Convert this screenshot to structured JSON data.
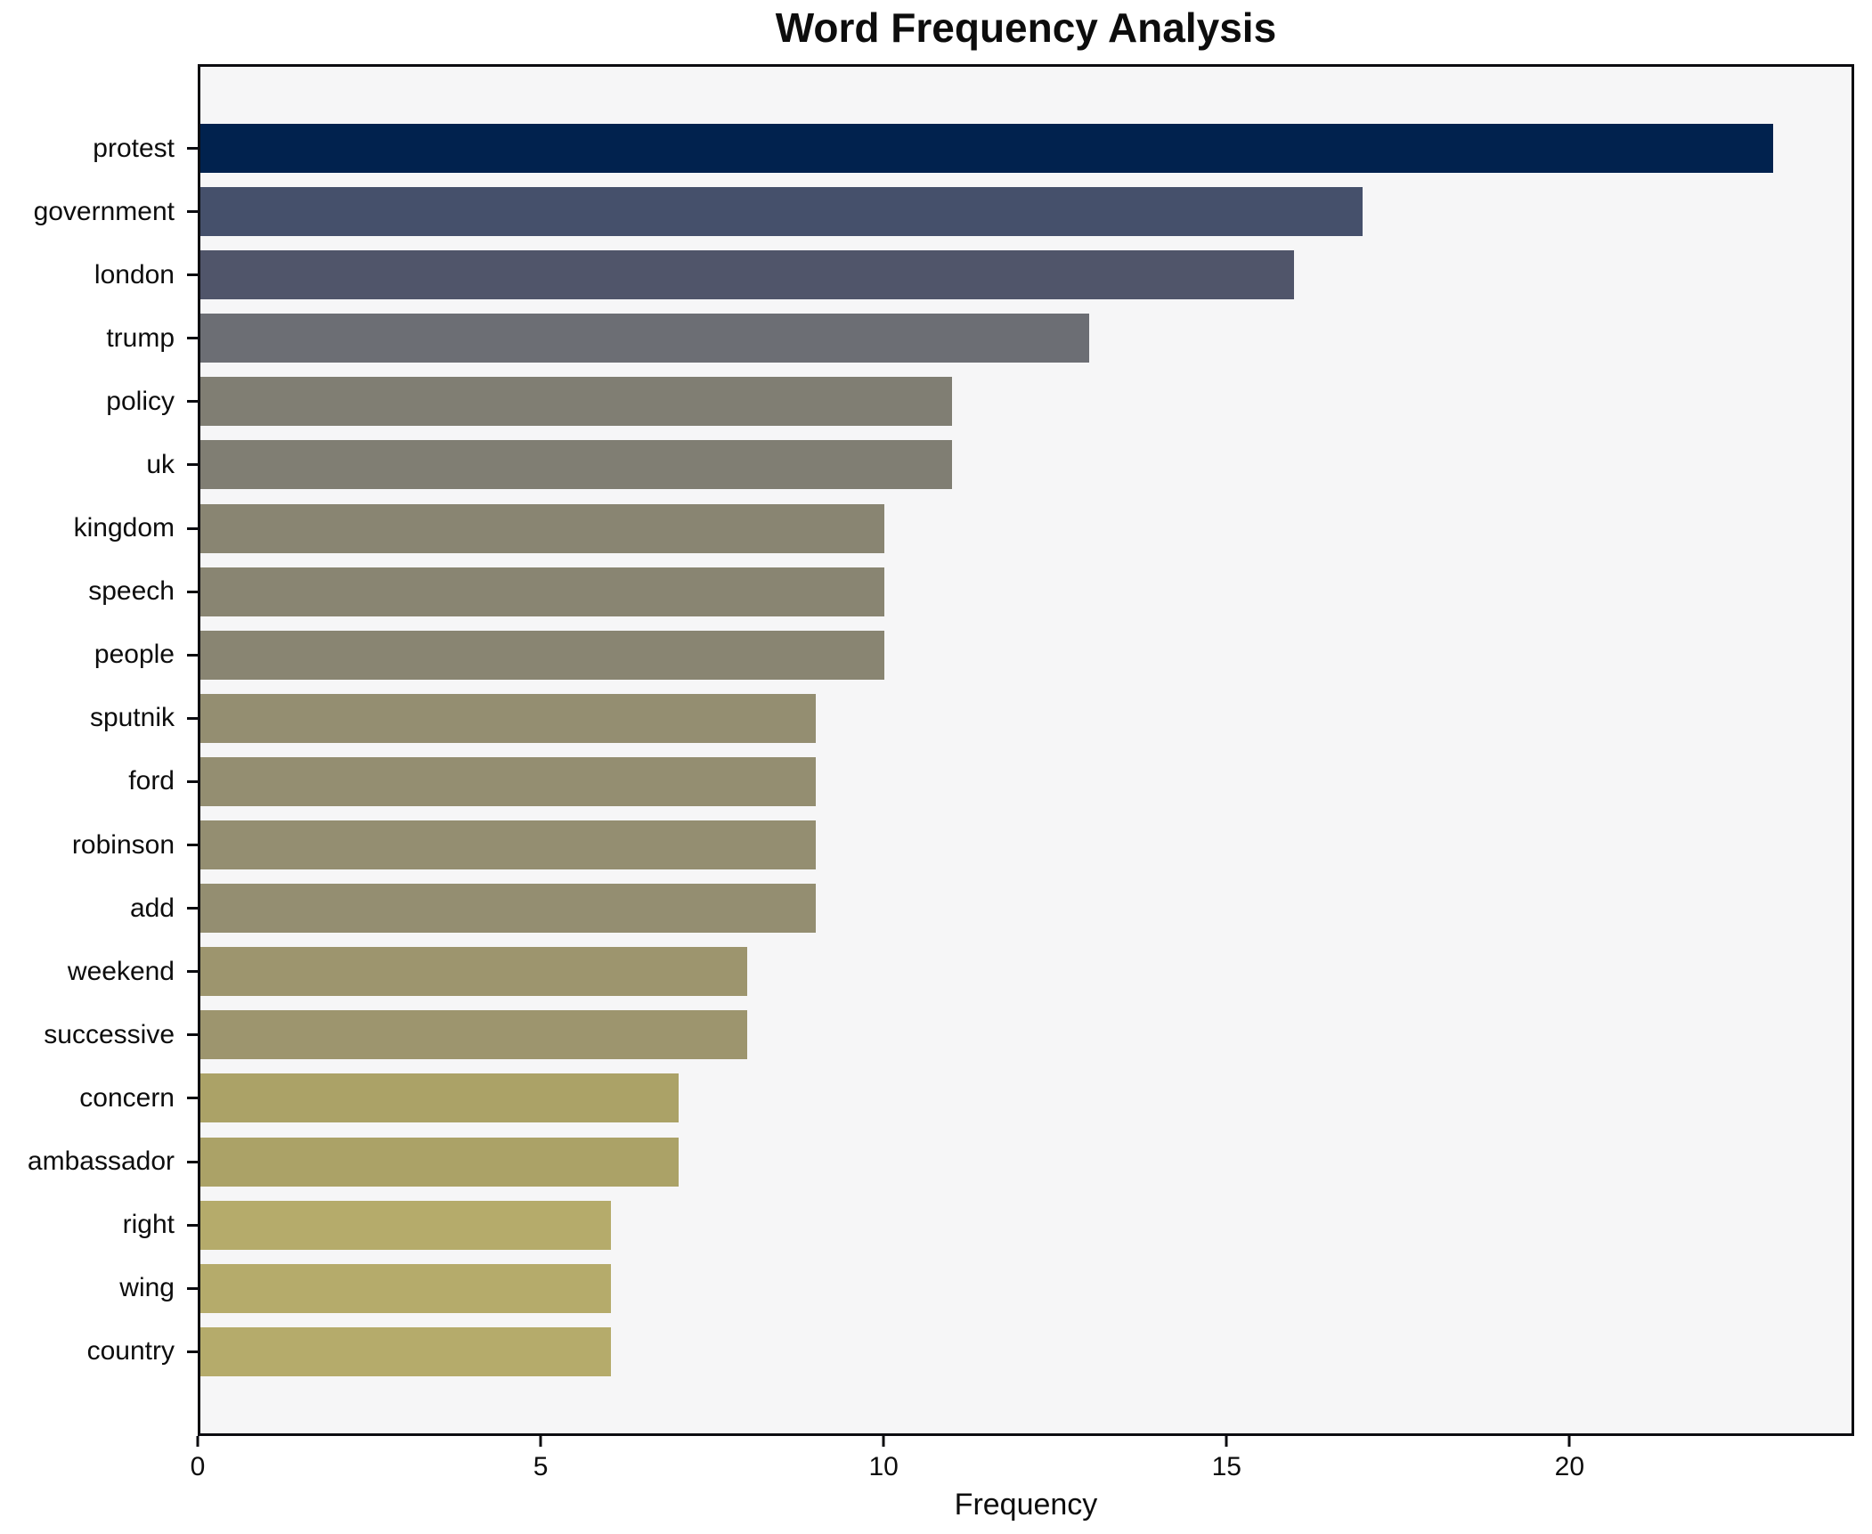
{
  "title": "Word Frequency Analysis",
  "xlabel": "Frequency",
  "colors": {
    "figure_background": "#ffffff",
    "plot_background": "#f6f6f7",
    "spine": "#0c0c10",
    "text": "#0d0d0d"
  },
  "chart_data": {
    "type": "bar",
    "orientation": "horizontal",
    "title": "Word Frequency Analysis",
    "xlabel": "Frequency",
    "ylabel": "",
    "grid": false,
    "legend": false,
    "xlim": [
      0,
      24.15
    ],
    "x_ticks": [
      0,
      5,
      10,
      15,
      20
    ],
    "categories": [
      "protest",
      "government",
      "london",
      "trump",
      "policy",
      "uk",
      "kingdom",
      "speech",
      "people",
      "sputnik",
      "ford",
      "robinson",
      "add",
      "weekend",
      "successive",
      "concern",
      "ambassador",
      "right",
      "wing",
      "country"
    ],
    "values": [
      23,
      17,
      16,
      13,
      11,
      11,
      10,
      10,
      10,
      9,
      9,
      9,
      9,
      8,
      8,
      7,
      7,
      6,
      6,
      6
    ],
    "bar_colors": [
      "#01224e",
      "#45506b",
      "#50556a",
      "#6c6e74",
      "#807e73",
      "#807e73",
      "#898572",
      "#898572",
      "#898572",
      "#948e71",
      "#948e71",
      "#948e71",
      "#948e71",
      "#9d956e",
      "#9d956e",
      "#aba267",
      "#aba267",
      "#b5ab6b",
      "#b5ab6b",
      "#b5ab6b"
    ],
    "colormap": "cividis"
  }
}
